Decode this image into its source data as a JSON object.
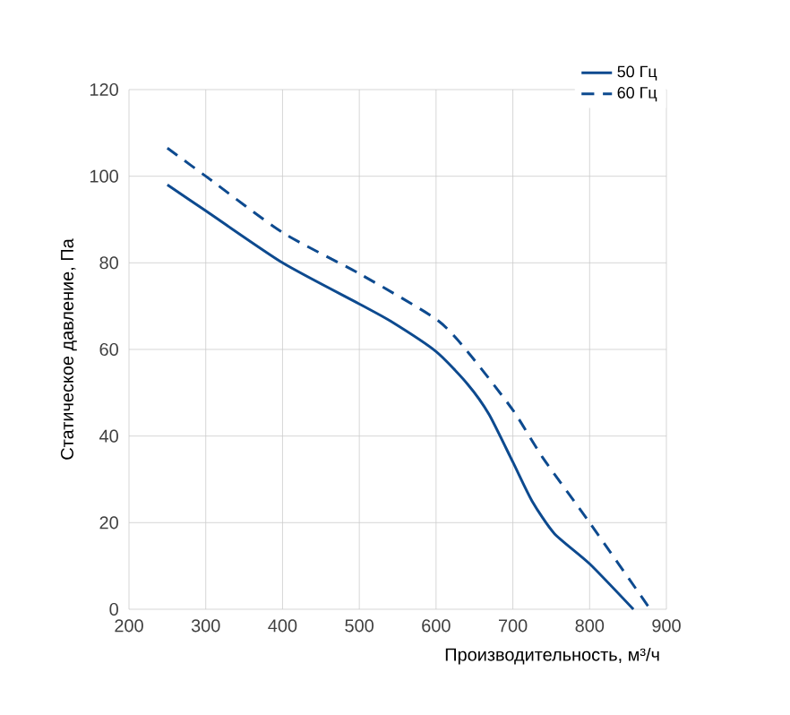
{
  "chart_data": {
    "type": "line",
    "xlabel": "Производительность, м³/ч",
    "ylabel": "Статическое давление, Па",
    "xlim": [
      200,
      900
    ],
    "xticks": [
      200,
      300,
      400,
      500,
      600,
      700,
      800,
      900
    ],
    "ylim": [
      0,
      120
    ],
    "yticks": [
      0,
      20,
      40,
      60,
      80,
      100,
      120
    ],
    "grid": true,
    "legend": "top right",
    "marker": "none",
    "series": [
      {
        "name": "50 Гц",
        "color": "#0d4a8f",
        "line_style": "solid",
        "x": [
          250,
          300,
          400,
          500,
          541,
          600,
          641,
          669,
          700,
          725,
          754,
          800,
          857
        ],
        "values": [
          98,
          92,
          80,
          70.5,
          66.5,
          59.5,
          52,
          45,
          34,
          25,
          17.5,
          10.5,
          0
        ]
      },
      {
        "name": "60 Гц",
        "color": "#0d4a8f",
        "line_style": "dashed",
        "x": [
          250,
          300,
          400,
          500,
          600,
          641,
          700,
          739,
          800,
          879
        ],
        "values": [
          106.5,
          100,
          87,
          77.5,
          67,
          59.5,
          46,
          35,
          20,
          0
        ]
      }
    ]
  }
}
